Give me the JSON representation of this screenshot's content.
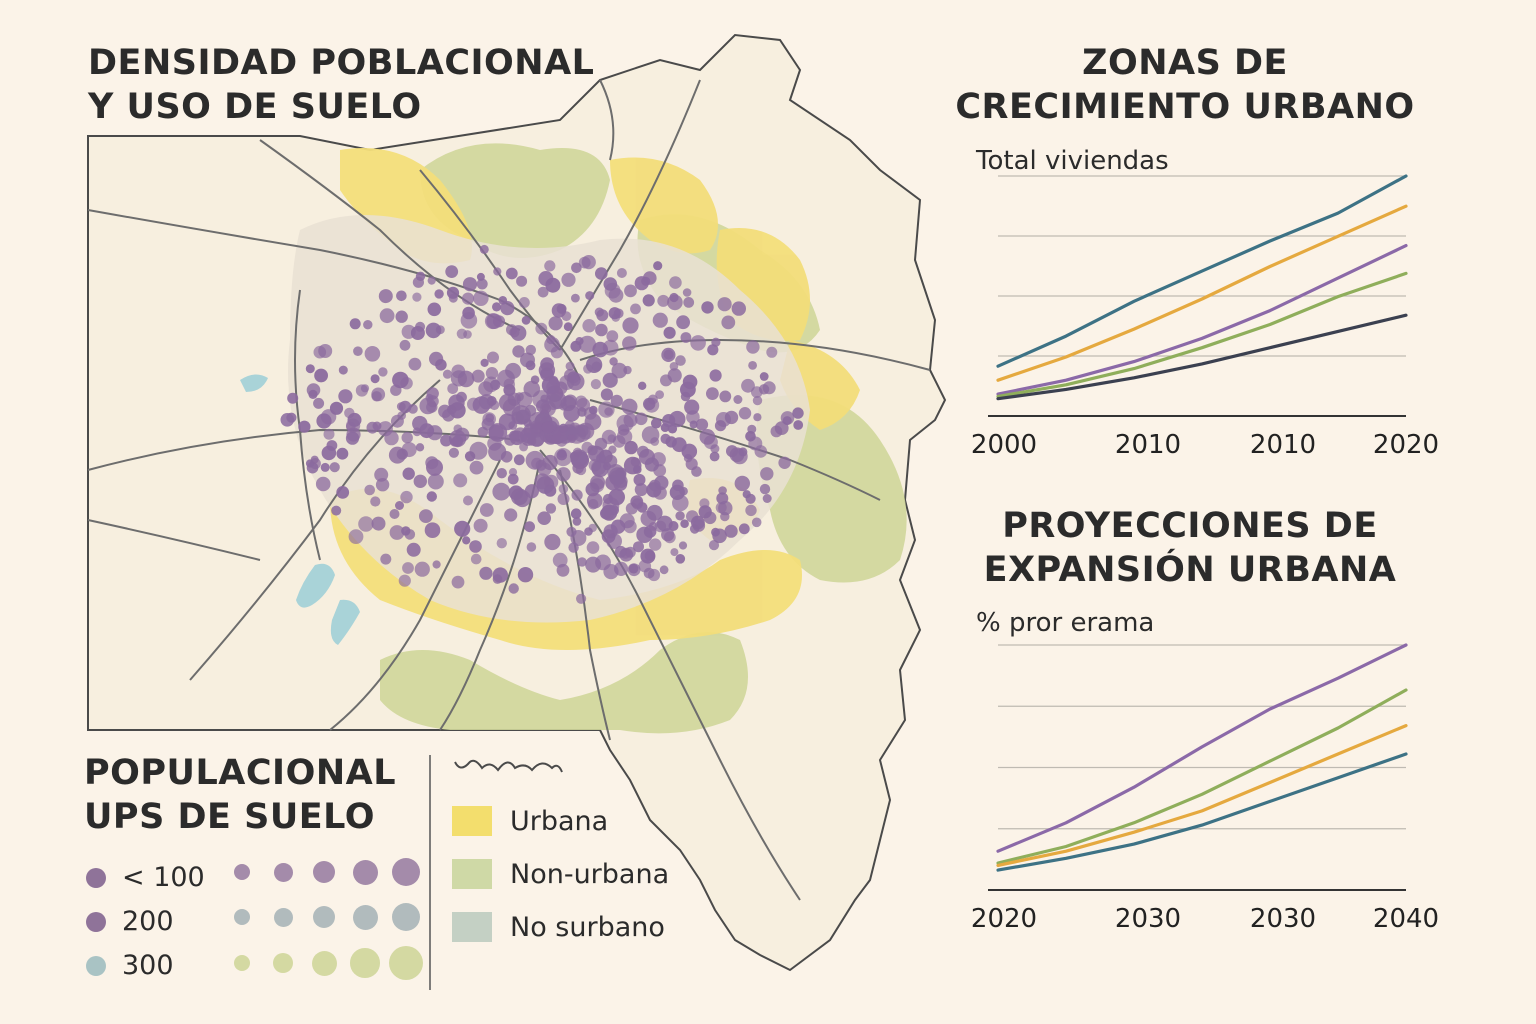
{
  "map": {
    "title_lines": [
      "DENSIDAD POBLACIONAL",
      "Y USO DE SUELO"
    ],
    "colors": {
      "background": "#fbf3e8",
      "land": "#f7efdf",
      "urban_yellow": "#f3de7a",
      "nonurban_green": "#cfd69a",
      "urban_core": "#e9e1d4",
      "water": "#a9d3d8",
      "density_dot": "#8b6a9e",
      "roads": "#6d6d6d"
    }
  },
  "legend": {
    "title_lines": [
      "POPULACIONAL",
      "UPS DE SUELO"
    ],
    "density_levels": [
      {
        "label": "< 100",
        "color": "#8f7399"
      },
      {
        "label": "200",
        "color": "#8f7399"
      },
      {
        "label": "300",
        "color": "#a9c3c4"
      }
    ],
    "size_rows": [
      {
        "color": "#9a7fa3",
        "count": 5
      },
      {
        "color": "#a9b5b8",
        "count": 5
      },
      {
        "color": "#cfd69a",
        "count": 5
      }
    ],
    "land_use": [
      {
        "label": "Urbana",
        "color": "#f3de6d"
      },
      {
        "label": "Non-urbana",
        "color": "#cfd9a6"
      },
      {
        "label": "No surbano",
        "color": "#c4d0c4"
      }
    ]
  },
  "growth_chart": {
    "title_lines": [
      "ZONAS DE",
      "CRECIMIENTO URBANO"
    ],
    "subtitle": "Total viviendas"
  },
  "projection_chart": {
    "title_lines": [
      "PROYECCIONES DE",
      "EXPANSIÓN URBANA"
    ],
    "subtitle": "% pror erama"
  },
  "chart_data": [
    {
      "type": "line",
      "title": "ZONAS DE CRECIMIENTO URBANO",
      "subtitle": "Total viviendas",
      "x_ticks": [
        "2000",
        "2010",
        "2010",
        "2020"
      ],
      "x": [
        0,
        1,
        2,
        3,
        4,
        5,
        6
      ],
      "ylim": [
        0,
        100
      ],
      "grid": true,
      "series": [
        {
          "color": "#3d7285",
          "values": [
            18,
            31,
            46,
            59,
            72,
            84,
            100
          ]
        },
        {
          "color": "#e5a93f",
          "values": [
            12,
            22,
            34,
            47,
            61,
            74,
            87
          ]
        },
        {
          "color": "#8b69a8",
          "values": [
            6,
            12,
            20,
            30,
            42,
            56,
            70
          ]
        },
        {
          "color": "#8fae5b",
          "values": [
            5,
            10,
            17,
            26,
            36,
            48,
            58
          ]
        },
        {
          "color": "#3b4050",
          "values": [
            4,
            8,
            13,
            19,
            26,
            33,
            40
          ]
        }
      ]
    },
    {
      "type": "line",
      "title": "PROYECCIONES DE EXPANSIÓN URBANA",
      "subtitle": "% pror erama",
      "x_ticks": [
        "2020",
        "2030",
        "2030",
        "2040"
      ],
      "x": [
        0,
        1,
        2,
        3,
        4,
        5,
        6
      ],
      "ylim": [
        0,
        100
      ],
      "grid": true,
      "series": [
        {
          "color": "#8b69a8",
          "values": [
            13,
            25,
            40,
            57,
            73,
            86,
            100
          ]
        },
        {
          "color": "#8fae5b",
          "values": [
            8,
            15,
            25,
            37,
            51,
            65,
            81
          ]
        },
        {
          "color": "#e5a93f",
          "values": [
            7,
            13,
            21,
            30,
            42,
            54,
            66
          ]
        },
        {
          "color": "#3d7285",
          "values": [
            5,
            10,
            16,
            24,
            34,
            44,
            54
          ]
        }
      ]
    }
  ]
}
